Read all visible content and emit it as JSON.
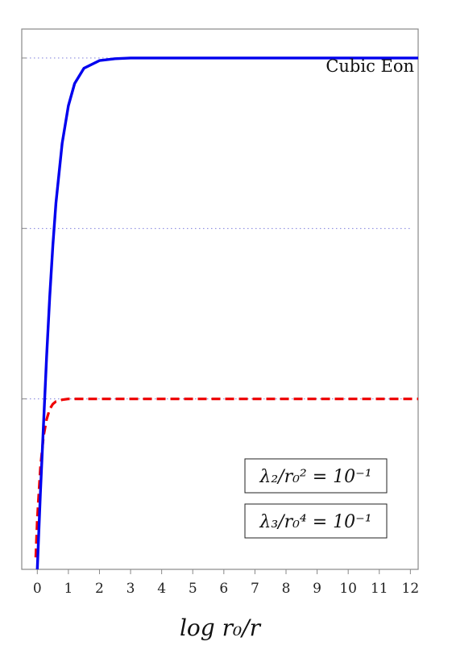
{
  "chart_data": {
    "type": "line",
    "xlabel": "log r₀/r",
    "ylabel": "",
    "xlim": [
      -0.5,
      12.25
    ],
    "ylim": [
      0,
      3.17
    ],
    "xticks": [
      "0",
      "1",
      "2",
      "3",
      "4",
      "5",
      "6",
      "7",
      "8",
      "9",
      "10",
      "11",
      "12"
    ],
    "grid": "horizontal dotted reference lines at 1, 2, 3",
    "annotation": "Cubic Eon",
    "boxes": [
      {
        "text": "λ₂/r₀² = 10⁻¹"
      },
      {
        "text": "λ₃/r₀⁴ = 10⁻¹"
      }
    ],
    "series": [
      {
        "style": "solid",
        "color": "#0000ee",
        "x": [
          0.0,
          0.1,
          0.2,
          0.3,
          0.4,
          0.5,
          0.6,
          0.8,
          1.0,
          1.2,
          1.5,
          2.0,
          2.5,
          3.0,
          4.0,
          5.0,
          6.0,
          8.0,
          10.0,
          12.25
        ],
        "y": [
          0.0,
          0.45,
          0.85,
          1.25,
          1.6,
          1.9,
          2.15,
          2.5,
          2.72,
          2.85,
          2.94,
          2.985,
          2.996,
          3.0,
          3.0,
          3.0,
          3.0,
          3.0,
          3.0,
          3.0
        ]
      },
      {
        "style": "dashed",
        "color": "#ee0000",
        "x": [
          -0.05,
          0.0,
          0.1,
          0.2,
          0.3,
          0.4,
          0.5,
          0.6,
          0.8,
          1.0,
          1.2,
          1.5,
          2.0,
          2.5,
          3.0,
          5.0,
          8.0,
          12.25
        ],
        "y": [
          0.07,
          0.3,
          0.6,
          0.78,
          0.88,
          0.94,
          0.97,
          0.985,
          0.995,
          1.0,
          1.0,
          1.0,
          1.0,
          1.0,
          1.0,
          1.0,
          1.0,
          1.0
        ]
      }
    ]
  }
}
